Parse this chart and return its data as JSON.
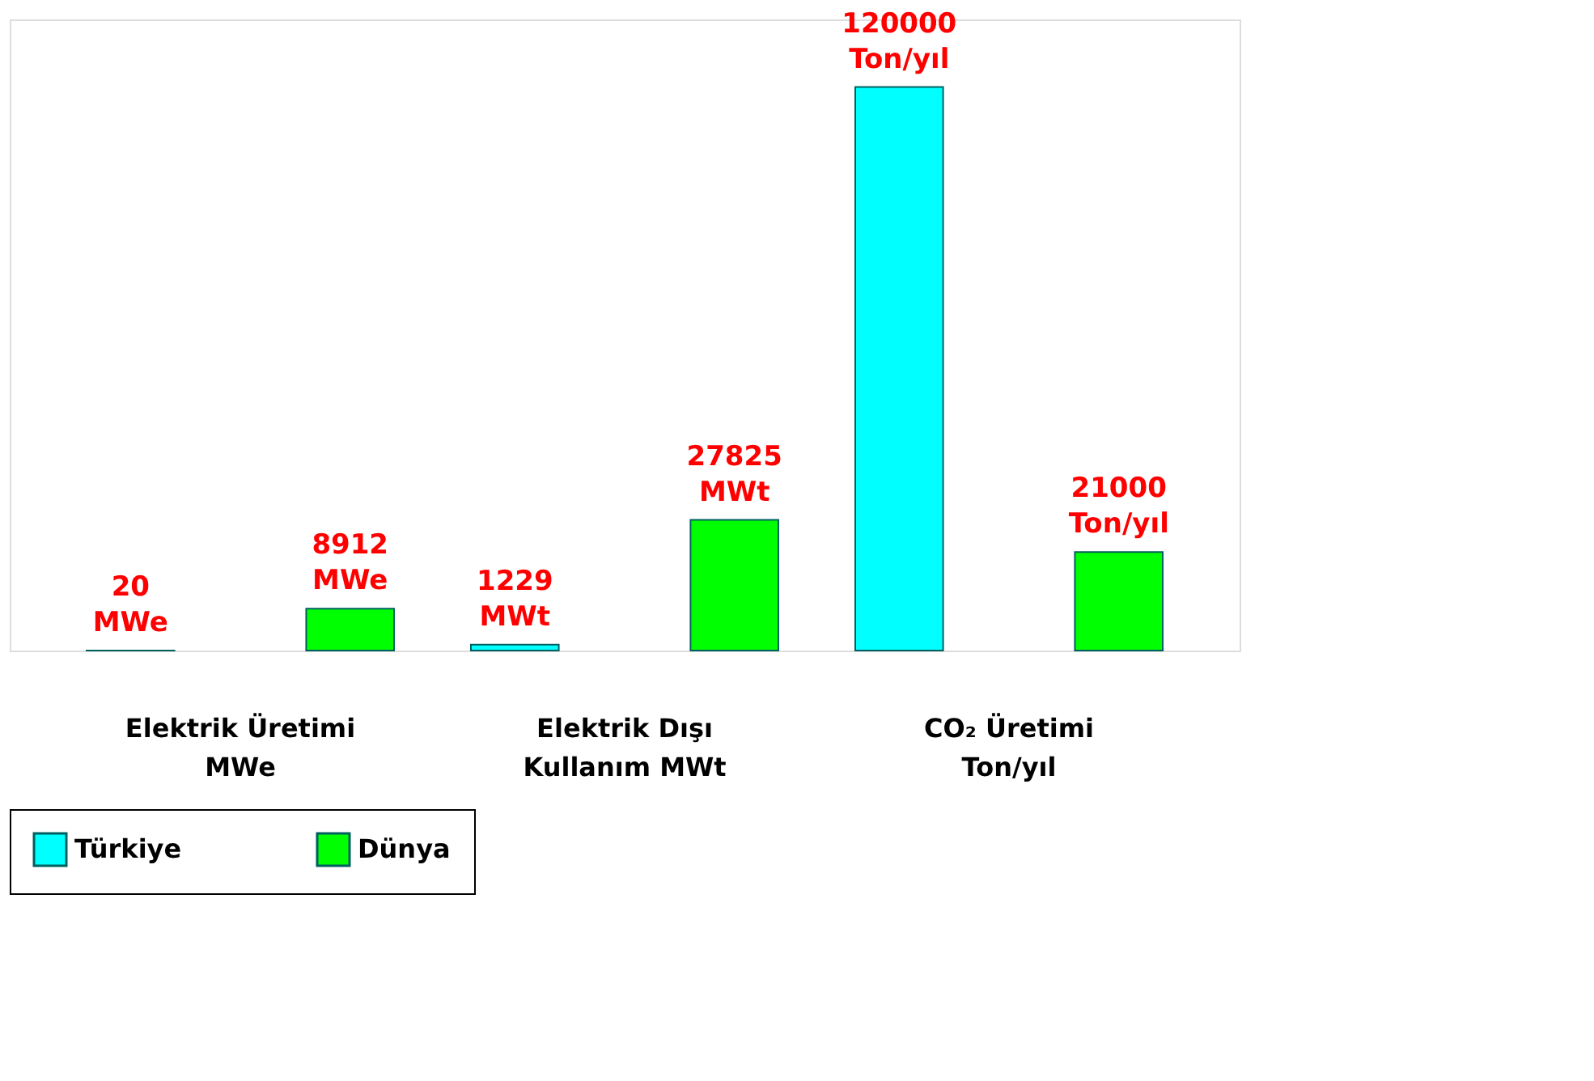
{
  "chart_data": {
    "type": "bar",
    "categories": [
      "Elektrik Üretimi\nMWe",
      "Elektrik Dışı\nKullanım MWt",
      "CO₂ Üretimi\nTon/yıl"
    ],
    "series": [
      {
        "name": "Türkiye",
        "color": "#00ffff",
        "values": [
          20,
          1229,
          120000
        ],
        "value_labels": [
          "20\nMWe",
          "1229\nMWt",
          "120000\nTon/yıl"
        ]
      },
      {
        "name": "Dünya",
        "color": "#00ff00",
        "values": [
          8912,
          27825,
          21000
        ],
        "value_labels": [
          "8912\nMWe",
          "27825\nMWt",
          "21000\nTon/yıl"
        ]
      }
    ],
    "legend": "bottom"
  }
}
